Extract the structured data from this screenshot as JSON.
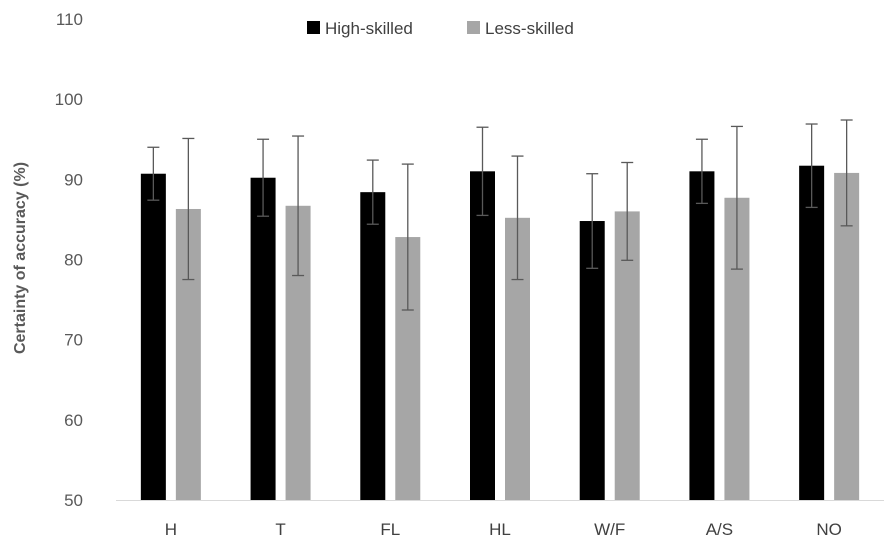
{
  "chart_data": {
    "type": "bar",
    "title": "",
    "xlabel": "",
    "ylabel": "Certainty of  accuracy  (%)",
    "ylim": [
      50,
      110
    ],
    "yticks": [
      50,
      60,
      70,
      80,
      90,
      100,
      110
    ],
    "categories": [
      "H",
      "T",
      "FL",
      "HL",
      "W/F",
      "A/S",
      "NO"
    ],
    "series": [
      {
        "name": "High-skilled",
        "color": "#000000",
        "values": [
          90.7,
          90.2,
          88.4,
          91.0,
          84.8,
          91.0,
          91.7
        ],
        "error": [
          3.3,
          4.8,
          4.0,
          5.5,
          5.9,
          4.0,
          5.2
        ]
      },
      {
        "name": "Less-skilled",
        "color": "#a6a6a6",
        "values": [
          86.3,
          86.7,
          82.8,
          85.2,
          86.0,
          87.7,
          90.8
        ],
        "error": [
          8.8,
          8.7,
          9.1,
          7.7,
          6.1,
          8.9,
          6.6
        ]
      }
    ],
    "legend_position": "top-center",
    "grid": false
  }
}
